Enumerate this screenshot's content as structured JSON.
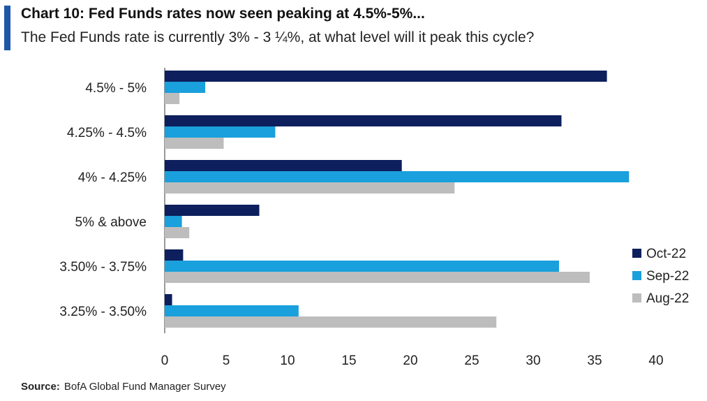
{
  "header": {
    "title": "Chart 10: Fed Funds rates now seen peaking at 4.5%-5%...",
    "subtitle": "The Fed Funds rate is currently 3% - 3 ¼%, at what level will it peak this cycle?"
  },
  "source": {
    "label": "Source:",
    "text": "BofA Global Fund Manager Survey"
  },
  "colors": {
    "accent": "#1d57a6",
    "oct22": "#0d1f5c",
    "sep22": "#1aa0dc",
    "aug22": "#bdbdbd"
  },
  "chart_data": {
    "type": "bar",
    "orientation": "horizontal",
    "categories": [
      "4.5% - 5%",
      "4.25% - 4.5%",
      "4% - 4.25%",
      "5% & above",
      "3.50% - 3.75%",
      "3.25% - 3.50%"
    ],
    "series": [
      {
        "name": "Oct-22",
        "color": "#0d1f5c",
        "values": [
          36,
          32.3,
          19.3,
          7.7,
          1.5,
          0.6
        ]
      },
      {
        "name": "Sep-22",
        "color": "#1aa0dc",
        "values": [
          3.3,
          9.0,
          37.8,
          1.4,
          32.1,
          10.9
        ]
      },
      {
        "name": "Aug-22",
        "color": "#bdbdbd",
        "values": [
          1.2,
          4.8,
          23.6,
          2.0,
          34.6,
          27.0
        ]
      }
    ],
    "xlim": [
      0,
      40
    ],
    "xticks": [
      0,
      5,
      10,
      15,
      20,
      25,
      30,
      35,
      40
    ],
    "grid": false,
    "legend_position": "right"
  }
}
